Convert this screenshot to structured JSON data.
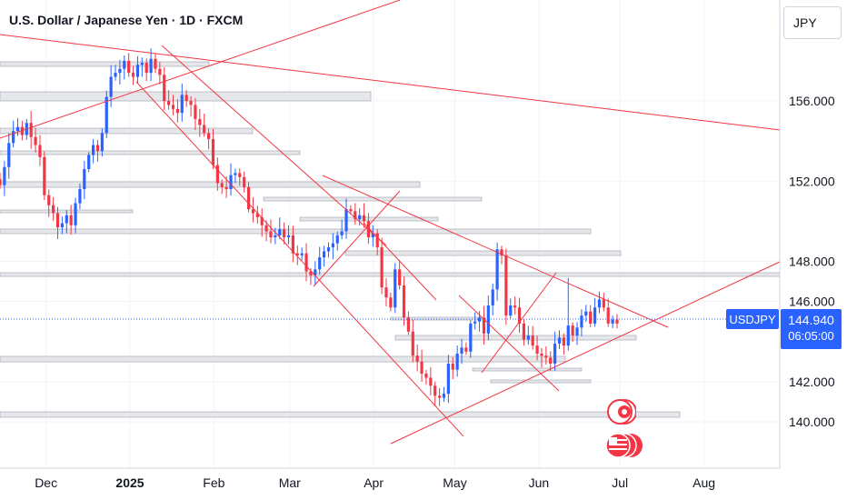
{
  "header": {
    "title": "U.S. Dollar / Japanese Yen · 1D · FXCM"
  },
  "price_scale": {
    "currency": "JPY"
  },
  "last_price": {
    "symbol": "USDJPY",
    "value": "144.940",
    "countdown": "06:05:00"
  },
  "colors": {
    "up": "#2962ff",
    "down": "#f23645",
    "trendline": "#f23645",
    "zone": "#b2b5be",
    "grid": "#f0f3fa",
    "tag": "#2962ff"
  },
  "icons": [
    "event-calendar-icon",
    "us-flag-icon"
  ],
  "chart_data": {
    "type": "candlestick",
    "y_ticks": [
      "156.000",
      "152.000",
      "148.000",
      "146.000",
      "142.000",
      "140.000"
    ],
    "x_ticks": [
      "Dec",
      "2025",
      "Feb",
      "Mar",
      "Apr",
      "May",
      "Jun",
      "Jul",
      "Aug"
    ],
    "ylim": [
      137.5,
      160.5
    ],
    "xlim": [
      "2024-11-14",
      "2025-08-29"
    ],
    "series": [
      {
        "closes": [
          151.8,
          152.7,
          153.9,
          154.5,
          154.7,
          154.3,
          154.9,
          154.2,
          153.8,
          153.2,
          151.3,
          150.8,
          150.4,
          149.7,
          149.9,
          150.3,
          149.8,
          150.9,
          151.6,
          152.6,
          153.3,
          153.8,
          153.5,
          154.4,
          156.2,
          157.2,
          157.4,
          157.6,
          158.0,
          157.4,
          157.2,
          157.8,
          157.9,
          157.4,
          158.1,
          157.6,
          157.3,
          156.0,
          155.8,
          155.6,
          155.4,
          156.3,
          156.0,
          155.8,
          155.1,
          154.8,
          154.4,
          154.1,
          152.8,
          151.9,
          151.7,
          151.6,
          152.3,
          152.4,
          152.2,
          151.7,
          150.6,
          150.4,
          150.2,
          149.8,
          149.5,
          149.2,
          149.3,
          149.6,
          149.2,
          149.3,
          148.4,
          148.3,
          148.4,
          147.5,
          147.3,
          147.6,
          148.2,
          148.5,
          148.7,
          148.9,
          149.3,
          149.5,
          150.6,
          150.5,
          150.1,
          150.3,
          150.0,
          149.2,
          149.4,
          148.7,
          146.7,
          146.2,
          145.7,
          147.6,
          146.8,
          145.2,
          144.5,
          143.3,
          143.0,
          142.4,
          142.2,
          141.8,
          141.3,
          141.2,
          141.4,
          142.9,
          142.6,
          143.4,
          143.7,
          143.5,
          144.9,
          145.0,
          145.2,
          144.4,
          145.8,
          146.6,
          148.6,
          148.3,
          145.3,
          145.8,
          145.7,
          144.9,
          144.1,
          144.3,
          143.8,
          143.4,
          143.3,
          143.2,
          142.9,
          143.9,
          144.2,
          143.8,
          144.8,
          144.3,
          144.7,
          145.3,
          145.5,
          144.9,
          145.7,
          146.1,
          145.7,
          144.9,
          145.1,
          144.9
        ]
      }
    ]
  }
}
